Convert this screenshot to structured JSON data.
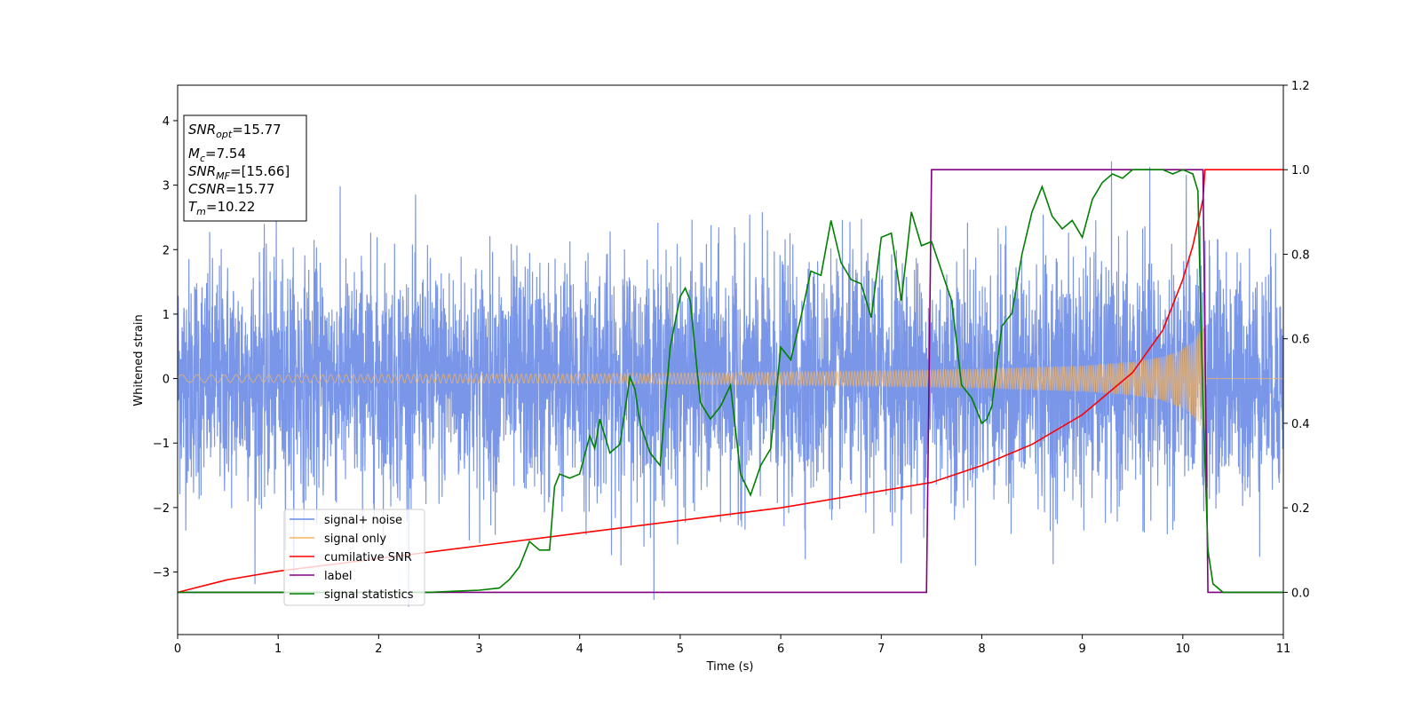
{
  "chart_data": {
    "type": "line",
    "title": "",
    "xlabel": "Time (s)",
    "ylabel": "Whitened strain",
    "y2label": "",
    "xlim": [
      0,
      11
    ],
    "ylim": [
      -3.97,
      4.55
    ],
    "y2lim": [
      -0.1,
      1.2
    ],
    "x_ticks": [
      "0",
      "1",
      "2",
      "3",
      "4",
      "5",
      "6",
      "7",
      "8",
      "9",
      "10",
      "11"
    ],
    "y_ticks": [
      "−3",
      "−2",
      "−1",
      "0",
      "1",
      "2",
      "3",
      "4"
    ],
    "y2_ticks": [
      "0.0",
      "0.2",
      "0.4",
      "0.6",
      "0.8",
      "1.0",
      "1.2"
    ],
    "grid": false,
    "legend_position": "lower-left",
    "legend": [
      "signal+ noise",
      "signal only",
      "cumilative SNR",
      "label",
      "signal statistics"
    ],
    "annotation": {
      "snr_opt": {
        "sym": "SNR",
        "sub": "opt",
        "value": "=15.77"
      },
      "mc": {
        "sym": "M",
        "sub": "c",
        "value": "=7.54"
      },
      "snr_mf": {
        "sym": "SNR",
        "sub": "MF",
        "value": "=[15.66]"
      },
      "csnr": {
        "sym": "CSNR",
        "sub": "",
        "value": "=15.77"
      },
      "tm": {
        "sym": "T",
        "sub": "m",
        "value": "=10.22"
      }
    },
    "series": [
      {
        "name": "signal+ noise",
        "axis": "left",
        "color": "#6a8be6",
        "noise_sigma": 0.9,
        "x_range": [
          0,
          11
        ]
      },
      {
        "name": "signal only",
        "axis": "left",
        "color": "#f5b461",
        "envelope": {
          "x": [
            0,
            1,
            2,
            3,
            4,
            5,
            6,
            7,
            8,
            9,
            9.5,
            9.8,
            10.0,
            10.1,
            10.2,
            10.22
          ],
          "amp": [
            0.06,
            0.06,
            0.065,
            0.07,
            0.075,
            0.085,
            0.1,
            0.12,
            0.15,
            0.2,
            0.26,
            0.34,
            0.46,
            0.58,
            0.8,
            0.95
          ]
        }
      },
      {
        "name": "cumilative SNR",
        "axis": "right",
        "color": "#ff0000",
        "x": [
          0,
          0.5,
          1,
          2,
          3,
          4,
          5,
          6,
          7,
          7.5,
          8,
          8.5,
          9,
          9.5,
          9.8,
          10.0,
          10.1,
          10.2,
          10.22,
          11
        ],
        "y": [
          0.0,
          0.03,
          0.05,
          0.08,
          0.11,
          0.14,
          0.17,
          0.2,
          0.24,
          0.26,
          0.3,
          0.35,
          0.42,
          0.52,
          0.62,
          0.74,
          0.82,
          0.93,
          1.0,
          1.0
        ]
      },
      {
        "name": "label",
        "axis": "right",
        "color": "#800080",
        "x": [
          0,
          7.45,
          7.5,
          10.2,
          10.25,
          11
        ],
        "y": [
          0,
          0,
          1,
          1,
          0,
          0
        ]
      },
      {
        "name": "signal statistics",
        "axis": "right",
        "color": "#008000",
        "x": [
          0,
          1,
          2,
          2.5,
          3.0,
          3.2,
          3.3,
          3.4,
          3.5,
          3.6,
          3.7,
          3.75,
          3.8,
          3.9,
          4.0,
          4.1,
          4.15,
          4.2,
          4.3,
          4.4,
          4.5,
          4.55,
          4.6,
          4.7,
          4.8,
          4.9,
          5.0,
          5.05,
          5.1,
          5.2,
          5.3,
          5.4,
          5.5,
          5.6,
          5.7,
          5.8,
          5.9,
          6.0,
          6.1,
          6.2,
          6.3,
          6.4,
          6.5,
          6.6,
          6.7,
          6.8,
          6.9,
          7.0,
          7.1,
          7.2,
          7.3,
          7.4,
          7.5,
          7.6,
          7.7,
          7.8,
          7.9,
          8.0,
          8.05,
          8.1,
          8.2,
          8.3,
          8.4,
          8.5,
          8.6,
          8.7,
          8.8,
          8.9,
          9.0,
          9.1,
          9.2,
          9.3,
          9.4,
          9.5,
          9.6,
          9.7,
          9.8,
          9.9,
          10.0,
          10.1,
          10.15,
          10.2,
          10.25,
          10.3,
          10.4,
          10.6,
          11
        ],
        "y": [
          0.0,
          0.0,
          0.0,
          0.0,
          0.005,
          0.01,
          0.03,
          0.06,
          0.12,
          0.1,
          0.1,
          0.25,
          0.28,
          0.27,
          0.28,
          0.37,
          0.34,
          0.41,
          0.33,
          0.35,
          0.51,
          0.48,
          0.4,
          0.33,
          0.3,
          0.58,
          0.7,
          0.72,
          0.69,
          0.45,
          0.41,
          0.44,
          0.49,
          0.28,
          0.23,
          0.3,
          0.34,
          0.58,
          0.55,
          0.65,
          0.76,
          0.75,
          0.88,
          0.78,
          0.74,
          0.73,
          0.65,
          0.84,
          0.85,
          0.69,
          0.9,
          0.82,
          0.83,
          0.76,
          0.69,
          0.49,
          0.46,
          0.4,
          0.41,
          0.44,
          0.63,
          0.66,
          0.8,
          0.9,
          0.96,
          0.89,
          0.86,
          0.88,
          0.84,
          0.93,
          0.97,
          0.99,
          0.98,
          1.0,
          1.0,
          1.0,
          1.0,
          0.99,
          1.0,
          0.99,
          0.95,
          0.45,
          0.1,
          0.02,
          0.0,
          0.0,
          0.0
        ]
      }
    ]
  }
}
